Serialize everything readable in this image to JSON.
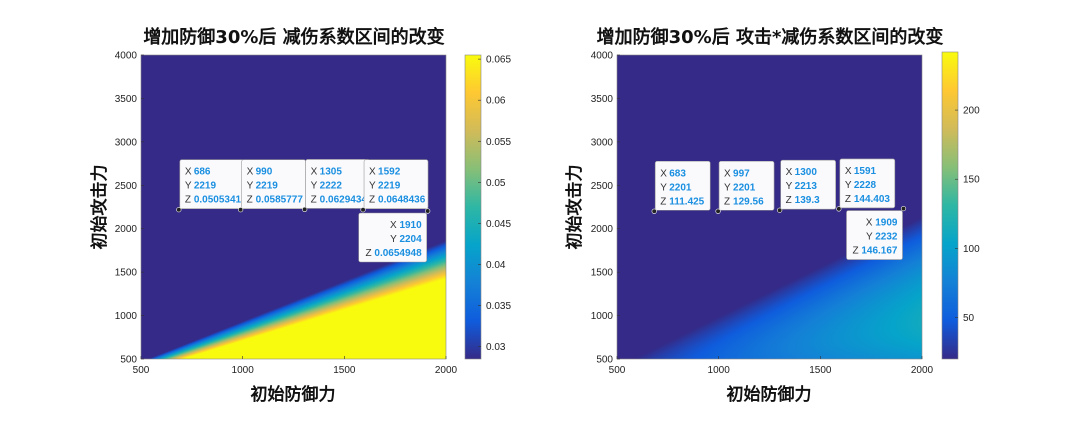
{
  "chart_data": [
    {
      "type": "heatmap",
      "title": "增加防御30%后 减伤系数区间的改变",
      "xlabel": "初始防御力",
      "ylabel": "初始攻击力",
      "xlim": [
        500,
        2000
      ],
      "ylim": [
        500,
        4000
      ],
      "x_ticks": [
        "500",
        "1000",
        "1500",
        "2000"
      ],
      "y_ticks": [
        "500",
        "1000",
        "1500",
        "2000",
        "2500",
        "3000",
        "3500",
        "4000"
      ],
      "colorbar": {
        "range": [
          0.0285,
          0.0655
        ],
        "ticks": [
          "0.03",
          "0.035",
          "0.04",
          "0.045",
          "0.05",
          "0.055",
          "0.06",
          "0.065"
        ],
        "tick_values": [
          0.03,
          0.035,
          0.04,
          0.045,
          0.05,
          0.055,
          0.06,
          0.065
        ]
      },
      "datatips": [
        {
          "x": "686",
          "y": "2219",
          "z": "0.0505341",
          "placement": "above-right"
        },
        {
          "x": "990",
          "y": "2219",
          "z": "0.0585777",
          "placement": "above-right"
        },
        {
          "x": "1305",
          "y": "2222",
          "z": "0.0629434",
          "placement": "above-right"
        },
        {
          "x": "1592",
          "y": "2219",
          "z": "0.0648436",
          "placement": "above-right"
        },
        {
          "x": "1910",
          "y": "2204",
          "z": "0.0654948",
          "placement": "below-left"
        }
      ]
    },
    {
      "type": "heatmap",
      "title": "增加防御30%后 攻击*减伤系数区间的改变",
      "xlabel": "初始防御力",
      "ylabel": "初始攻击力",
      "xlim": [
        500,
        2000
      ],
      "ylim": [
        500,
        4000
      ],
      "x_ticks": [
        "500",
        "1000",
        "1500",
        "2000"
      ],
      "y_ticks": [
        "500",
        "1000",
        "1500",
        "2000",
        "2500",
        "3000",
        "3500",
        "4000"
      ],
      "colorbar": {
        "range": [
          20,
          242
        ],
        "ticks": [
          "50",
          "100",
          "150",
          "200"
        ],
        "tick_values": [
          50,
          100,
          150,
          200
        ]
      },
      "datatips": [
        {
          "x": "683",
          "y": "2201",
          "z": "111.425",
          "placement": "above-right"
        },
        {
          "x": "997",
          "y": "2201",
          "z": "129.56",
          "placement": "above-right"
        },
        {
          "x": "1300",
          "y": "2213",
          "z": "139.3",
          "placement": "above-right"
        },
        {
          "x": "1591",
          "y": "2228",
          "z": "144.403",
          "placement": "above-right"
        },
        {
          "x": "1909",
          "y": "2232",
          "z": "146.167",
          "placement": "below-left"
        }
      ]
    }
  ]
}
